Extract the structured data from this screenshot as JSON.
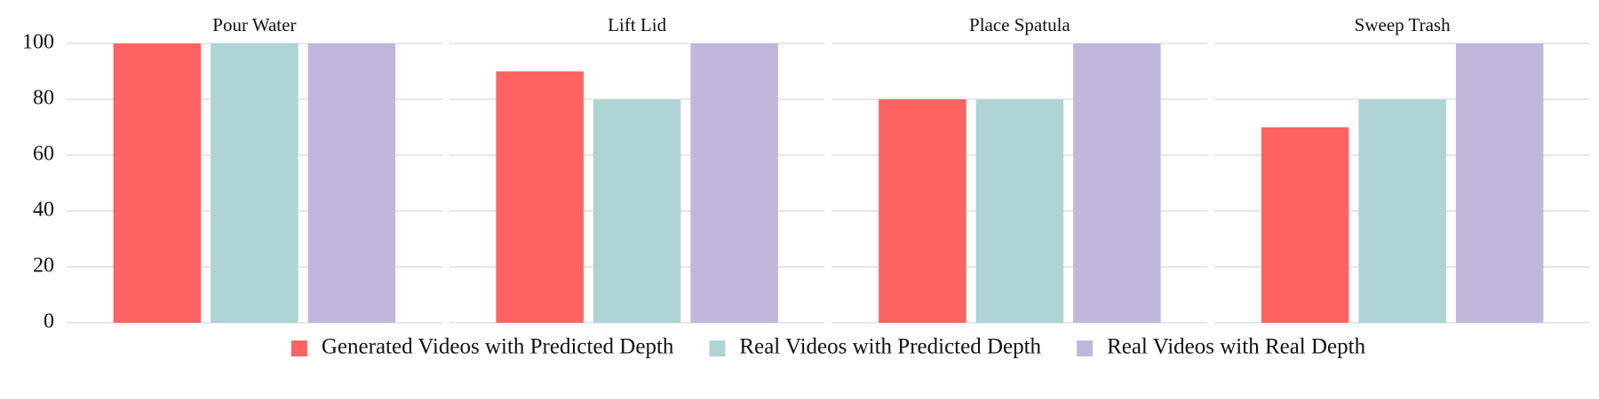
{
  "chart_data": {
    "type": "bar",
    "categories": [
      "Pour Water",
      "Lift Lid",
      "Place Spatula",
      "Sweep Trash"
    ],
    "series": [
      {
        "name": "Generated Videos with Predicted Depth",
        "color": "#ff6361",
        "values": [
          100,
          90,
          80,
          70
        ]
      },
      {
        "name": "Real Videos with Predicted Depth",
        "color": "#aed4d6",
        "values": [
          100,
          80,
          80,
          80
        ]
      },
      {
        "name": "Real Videos with Real Depth",
        "color": "#bfb8da",
        "values": [
          100,
          100,
          100,
          100
        ]
      }
    ],
    "ylim": [
      0,
      100
    ],
    "yticks": [
      0,
      20,
      40,
      60,
      80,
      100
    ],
    "grid": true,
    "legend": "bottom"
  }
}
